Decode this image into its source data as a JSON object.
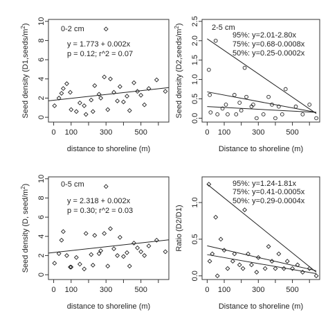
{
  "chart_data": [
    {
      "type": "scatter",
      "panel_label": "0-2 cm",
      "xlabel": "distance to shoreline (m)",
      "ylabel": "Seed density (D1,seeds/m",
      "ylabel_sup": "2",
      "ylabel_close": ")",
      "xlim": [
        -30,
        660
      ],
      "ylim": [
        -0.5,
        10.2
      ],
      "xticks": [
        0,
        100,
        200,
        300,
        400,
        500,
        600
      ],
      "xtick_labels": [
        "0",
        "",
        "",
        "300",
        "",
        "500",
        ""
      ],
      "yticks": [
        0,
        2,
        4,
        6,
        8,
        10
      ],
      "ytick_labels": [
        "0",
        "2",
        "4",
        "6",
        "8",
        "10"
      ],
      "marker": "diamond",
      "annotations": [
        "y = 1.773 + 0.002x",
        "p = 0.12; r^2 = 0.07"
      ],
      "series": [
        {
          "x": [
            5,
            30,
            45,
            55,
            75,
            95,
            100,
            130,
            150,
            175,
            185,
            215,
            225,
            235,
            260,
            270,
            290,
            300,
            310,
            325,
            345,
            365,
            380,
            400,
            420,
            435,
            460,
            480,
            500,
            520,
            545,
            590,
            640
          ],
          "y": [
            1.2,
            2.0,
            2.5,
            3.0,
            3.5,
            2.6,
            0.8,
            0.6,
            1.5,
            1.2,
            0.3,
            1.8,
            0.6,
            3.3,
            2.4,
            2.0,
            4.2,
            9.2,
            0.8,
            4.0,
            2.6,
            1.7,
            3.2,
            1.6,
            2.2,
            0.7,
            3.6,
            2.7,
            2.3,
            1.3,
            3.0,
            3.9,
            2.7
          ]
        }
      ],
      "lines": [
        {
          "intercept": 1.773,
          "slope": 0.002
        }
      ]
    },
    {
      "type": "scatter",
      "panel_label": "2-5 cm",
      "xlabel": "Distance to shoreline (m)",
      "ylabel": "Seed density (D2,seeds/m",
      "ylabel_sup": "2",
      "ylabel_close": ")",
      "xlim": [
        -30,
        660
      ],
      "ylim": [
        -0.1,
        2.55
      ],
      "xticks": [
        0,
        100,
        200,
        300,
        400,
        500,
        600
      ],
      "xtick_labels": [
        "0",
        "",
        "",
        "300",
        "",
        "500",
        ""
      ],
      "yticks": [
        0.0,
        0.5,
        1.0,
        1.5,
        2.0,
        2.5
      ],
      "ytick_labels": [
        "0.0",
        "0.5",
        "1.0",
        "1.5",
        "2.0",
        "2.5"
      ],
      "marker": "circle",
      "annotations": [
        "95%: y=2.01-2.80x",
        "75%: y=0.68-0.0008x",
        "50%: y=0.25-0.0002x"
      ],
      "series": [
        {
          "x": [
            10,
            15,
            20,
            50,
            60,
            90,
            110,
            120,
            160,
            170,
            190,
            200,
            220,
            230,
            260,
            270,
            290,
            330,
            360,
            380,
            400,
            420,
            440,
            460,
            520,
            560,
            600,
            640
          ],
          "y": [
            1.25,
            0.6,
            0.15,
            2.0,
            0.1,
            0.25,
            0.35,
            0.1,
            0.6,
            0.1,
            0.4,
            0.2,
            1.3,
            0.55,
            0.3,
            0.35,
            0.0,
            0.1,
            0.55,
            0.35,
            0.0,
            0.3,
            0.1,
            0.75,
            0.3,
            0.1,
            0.35,
            0.0
          ]
        }
      ],
      "lines": [
        {
          "x0": 0,
          "y0": 2.05,
          "x1": 640,
          "y1": 0.12
        },
        {
          "x0": 0,
          "y0": 0.68,
          "x1": 640,
          "y1": 0.15
        },
        {
          "x0": 0,
          "y0": 0.3,
          "x1": 640,
          "y1": 0.15
        }
      ]
    },
    {
      "type": "scatter",
      "panel_label": "0-5 cm",
      "xlabel": "distance to shoreline (m)",
      "ylabel": "Seed density (D, seed/m",
      "ylabel_sup": "2",
      "ylabel_close": ")",
      "xlim": [
        -30,
        660
      ],
      "ylim": [
        -0.5,
        10.2
      ],
      "xticks": [
        0,
        100,
        200,
        300,
        400,
        500,
        600
      ],
      "xtick_labels": [
        "0",
        "",
        "",
        "300",
        "",
        "500",
        ""
      ],
      "yticks": [
        0,
        2,
        4,
        6,
        8,
        10
      ],
      "ytick_labels": [
        "0",
        "2",
        "4",
        "6",
        "8",
        "10"
      ],
      "marker": "diamond",
      "annotations": [
        "y = 2.318 + 0.002x",
        "p = 0.30; r^2 = 0.03"
      ],
      "series": [
        {
          "x": [
            5,
            30,
            45,
            55,
            75,
            95,
            100,
            130,
            150,
            175,
            185,
            215,
            225,
            235,
            260,
            270,
            290,
            300,
            310,
            325,
            345,
            365,
            380,
            400,
            420,
            435,
            460,
            480,
            500,
            520,
            545,
            590,
            640
          ],
          "y": [
            1.2,
            2.2,
            3.6,
            4.5,
            2.0,
            0.8,
            0.8,
            1.8,
            1.1,
            0.6,
            4.3,
            2.1,
            1.0,
            4.1,
            2.2,
            2.5,
            4.3,
            9.2,
            0.9,
            4.8,
            2.7,
            2.0,
            3.9,
            1.9,
            2.3,
            0.9,
            3.3,
            2.8,
            2.4,
            2.0,
            3.0,
            3.6,
            2.4
          ]
        }
      ],
      "lines": [
        {
          "intercept": 2.318,
          "slope": 0.002
        }
      ]
    },
    {
      "type": "scatter",
      "panel_label": "",
      "xlabel": "Distance to shoreline (m)",
      "ylabel": "Ratio (D2/D1)",
      "ylabel_sup": "",
      "ylabel_close": "",
      "xlim": [
        -30,
        660
      ],
      "ylim": [
        -0.05,
        1.35
      ],
      "xticks": [
        0,
        100,
        200,
        300,
        400,
        500,
        600
      ],
      "xtick_labels": [
        "0",
        "",
        "",
        "300",
        "",
        "500",
        ""
      ],
      "yticks": [
        0.0,
        0.5,
        1.0
      ],
      "ytick_labels": [
        "0.0",
        "0.5",
        "1.0"
      ],
      "marker": "diamond",
      "annotations": [
        "95%: y=1.24-1.81x",
        "75%: y=0.41-0.0005x",
        "50%: y=0.29-0.0004x"
      ],
      "series": [
        {
          "x": [
            10,
            15,
            30,
            50,
            60,
            80,
            100,
            120,
            150,
            160,
            190,
            210,
            220,
            240,
            260,
            290,
            300,
            340,
            360,
            380,
            400,
            420,
            450,
            470,
            500,
            530,
            560,
            600,
            640
          ],
          "y": [
            1.25,
            0.2,
            0.3,
            0.8,
            0.0,
            0.5,
            0.35,
            0.1,
            0.2,
            0.3,
            0.15,
            0.1,
            0.9,
            0.3,
            0.15,
            0.05,
            0.25,
            0.1,
            0.4,
            0.2,
            0.1,
            0.3,
            0.1,
            0.2,
            0.1,
            0.15,
            0.05,
            0.1,
            0.0
          ]
        }
      ],
      "lines": [
        {
          "x0": 0,
          "y0": 1.25,
          "x1": 640,
          "y1": 0.05
        },
        {
          "x0": 0,
          "y0": 0.41,
          "x1": 640,
          "y1": 0.07
        },
        {
          "x0": 0,
          "y0": 0.29,
          "x1": 640,
          "y1": 0.03
        }
      ]
    }
  ]
}
